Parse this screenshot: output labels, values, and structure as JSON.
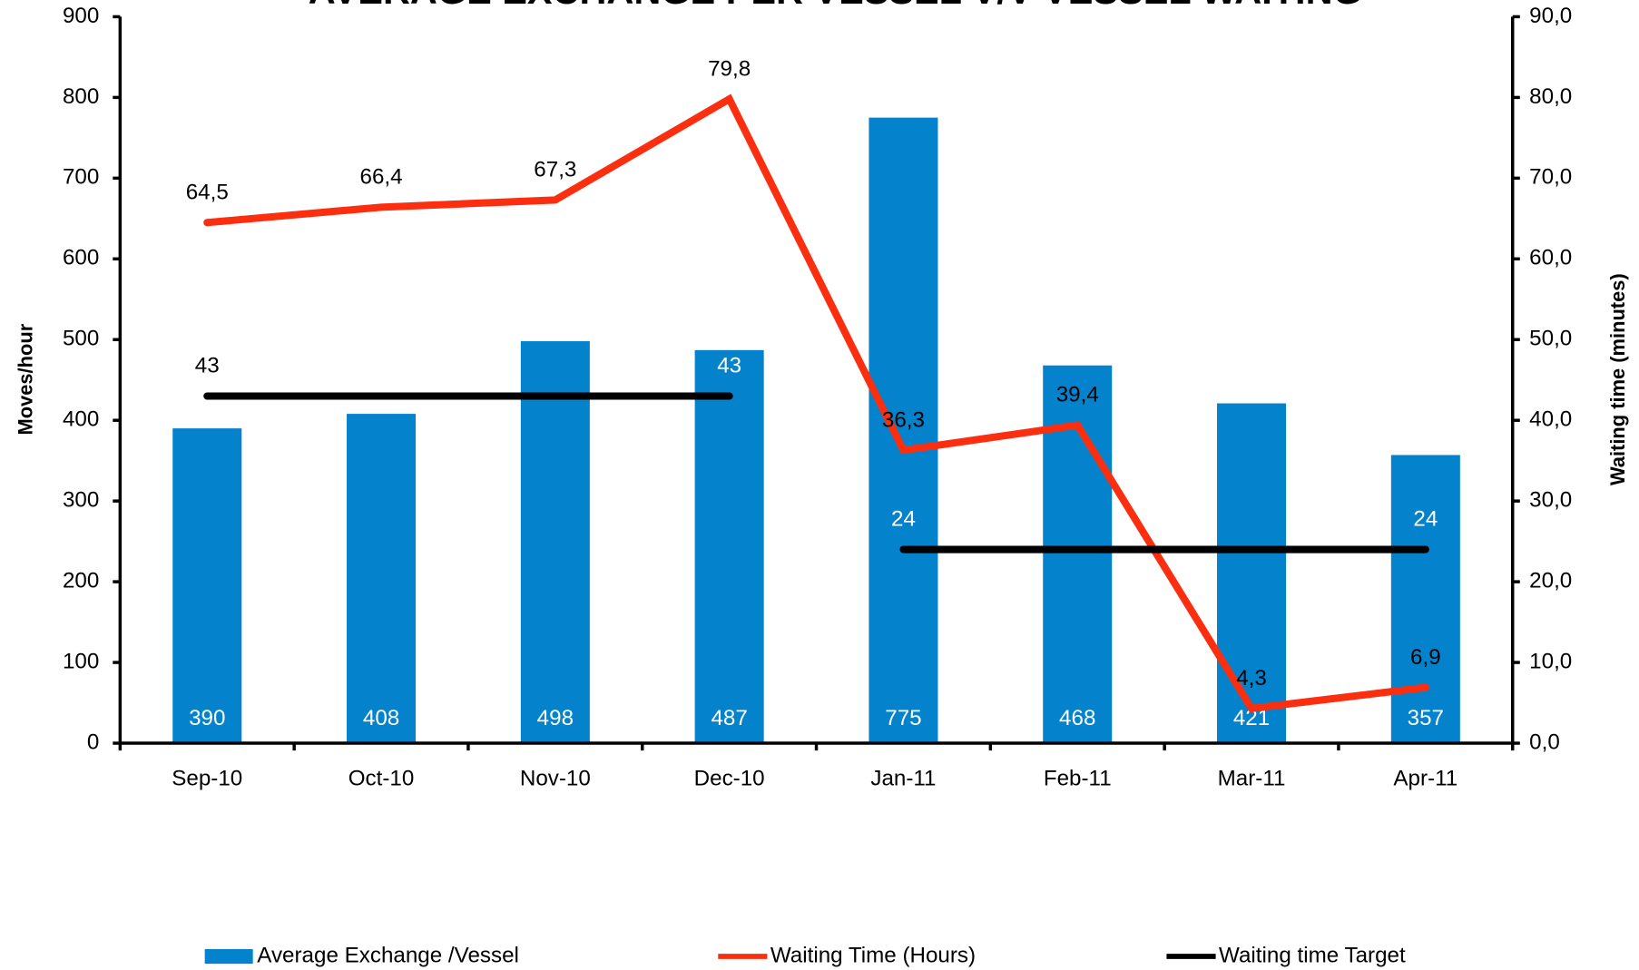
{
  "chart_data": {
    "type": "bar",
    "title": "AVERAGE EXCHANGE PER VESSEL V/V VESSEL WAITING",
    "y_label": "Moves/hour",
    "y2_label": "Waiting time (minutes)",
    "categories": [
      "Sep-10",
      "Oct-10",
      "Nov-10",
      "Dec-10",
      "Jan-11",
      "Feb-11",
      "Mar-11",
      "Apr-11"
    ],
    "ylim": [
      0,
      900
    ],
    "yticks": [
      0,
      100,
      200,
      300,
      400,
      500,
      600,
      700,
      800,
      900
    ],
    "y2lim": [
      0,
      90
    ],
    "y2ticks": [
      {
        "value": 0,
        "label": "0,0"
      },
      {
        "value": 10,
        "label": "10,0"
      },
      {
        "value": 20,
        "label": "20,0"
      },
      {
        "value": 30,
        "label": "30,0"
      },
      {
        "value": 40,
        "label": "40,0"
      },
      {
        "value": 50,
        "label": "50,0"
      },
      {
        "value": 60,
        "label": "60,0"
      },
      {
        "value": 70,
        "label": "70,0"
      },
      {
        "value": 80,
        "label": "80,0"
      },
      {
        "value": 90,
        "label": "90,0"
      }
    ],
    "legend": "bottom",
    "series": [
      {
        "name": "Average Exchange /Vessel",
        "type": "bar",
        "color": "#0582cc",
        "values": [
          390,
          408,
          498,
          487,
          775,
          468,
          421,
          357
        ]
      },
      {
        "name": "Waiting Time (Hours)",
        "type": "line",
        "axis": "y2",
        "color": "#fb2f10",
        "values": [
          64.5,
          66.4,
          67.3,
          79.8,
          36.3,
          39.4,
          4.3,
          6.9
        ],
        "value_labels": [
          "64,5",
          "66,4",
          "67,3",
          "79,8",
          "36,3",
          "39,4",
          "4,3",
          "6,9"
        ]
      },
      {
        "name": "Waiting time Target",
        "type": "line",
        "axis": "y2",
        "color": "#000000",
        "values": [
          43,
          43,
          43,
          43,
          24,
          24,
          24,
          24
        ],
        "value_labels": [
          "43",
          null,
          null,
          "43",
          "24",
          null,
          null,
          "24"
        ]
      }
    ]
  }
}
